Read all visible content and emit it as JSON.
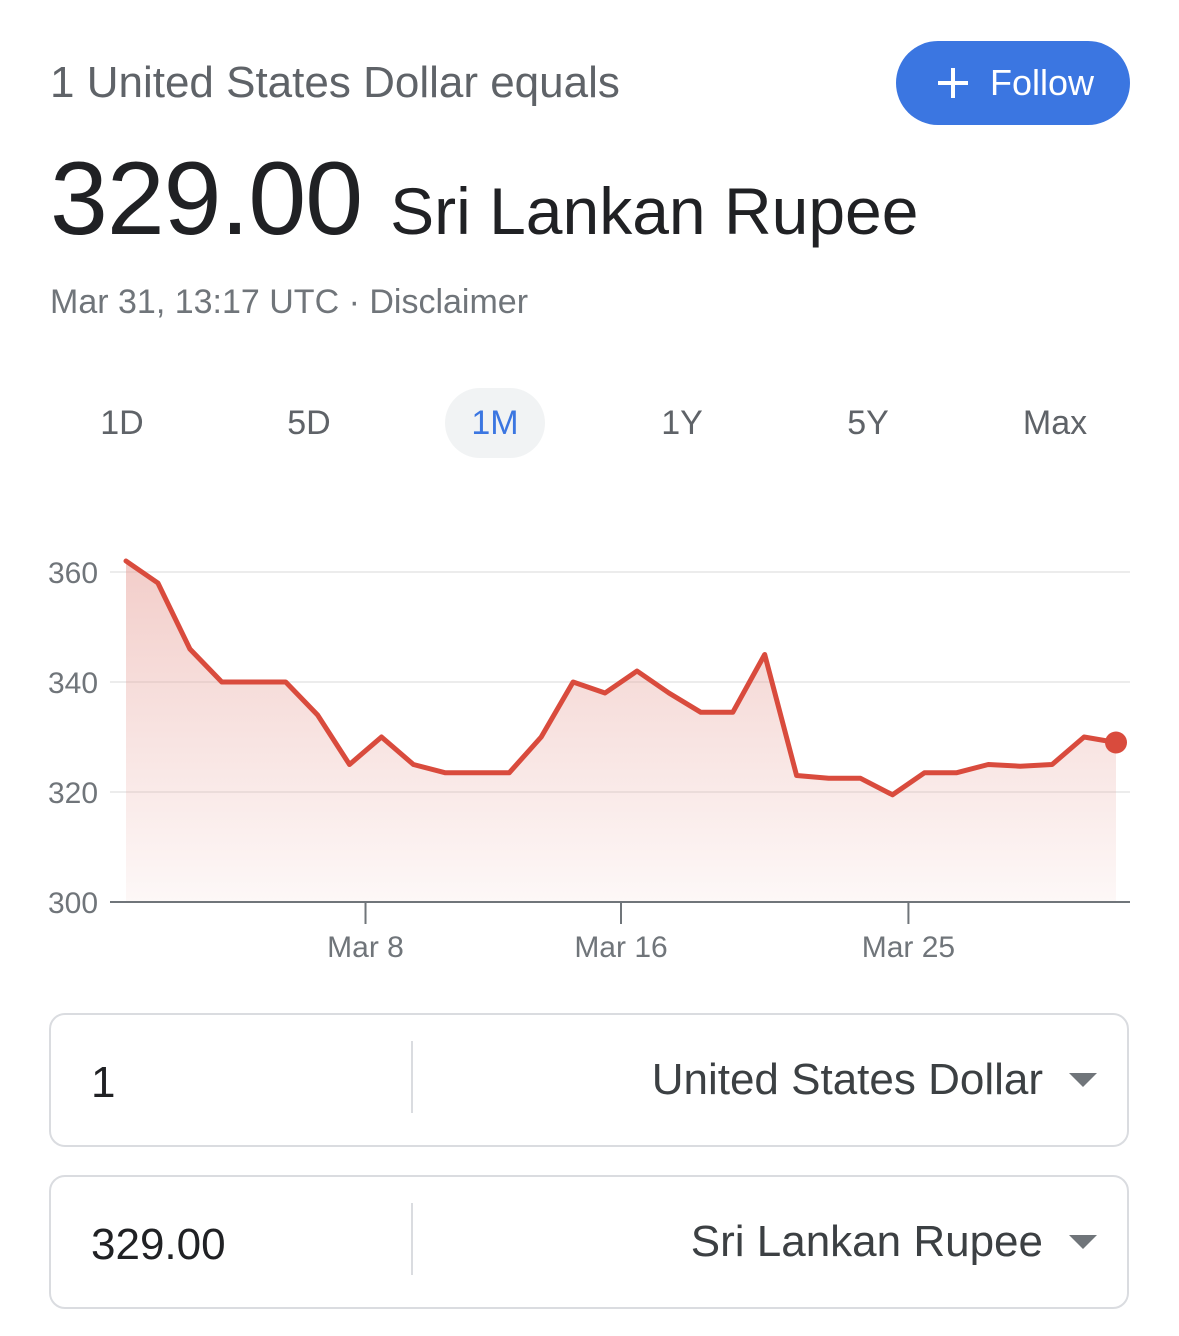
{
  "header": {
    "subtitle": "1 United States Dollar equals",
    "follow_label": "Follow"
  },
  "rate": {
    "value": "329.00",
    "currency": "Sri Lankan Rupee"
  },
  "meta": {
    "timestamp": "Mar 31, 13:17 UTC",
    "separator": " · ",
    "disclaimer": "Disclaimer"
  },
  "ranges": [
    {
      "label": "1D",
      "active": false
    },
    {
      "label": "5D",
      "active": false
    },
    {
      "label": "1M",
      "active": true
    },
    {
      "label": "1Y",
      "active": false
    },
    {
      "label": "5Y",
      "active": false
    },
    {
      "label": "Max",
      "active": false
    }
  ],
  "chart_data": {
    "type": "area",
    "title": "",
    "xlabel": "",
    "ylabel": "",
    "ylim": [
      300,
      360
    ],
    "yticks": [
      300,
      320,
      340,
      360
    ],
    "xticks": [
      {
        "label": "Mar 8",
        "x": 8
      },
      {
        "label": "Mar 16",
        "x": 16
      },
      {
        "label": "Mar 25",
        "x": 25
      }
    ],
    "xlim": [
      0.5,
      31.5
    ],
    "grid": true,
    "line_color": "#d94b3d",
    "fill_color": "#e8a59e",
    "series": [
      {
        "x": [
          0.5,
          1.5,
          2.5,
          3.5,
          4.5,
          5.5,
          6.5,
          7.5,
          8.5,
          9.5,
          10.5,
          11.5,
          12.5,
          13.5,
          14.5,
          15.5,
          16.5,
          17.5,
          18.5,
          19.5,
          20.5,
          21.5,
          22.5,
          23.5,
          24.5,
          25.5,
          26.5,
          27.5,
          28.5,
          29.5,
          30.5,
          31.5
        ],
        "values": [
          362,
          358,
          346,
          340,
          340,
          340,
          334,
          325,
          330,
          325,
          323.5,
          323.5,
          323.5,
          330,
          340,
          338,
          342,
          338,
          334.5,
          334.5,
          345,
          323,
          322.5,
          322.5,
          319.5,
          323.5,
          323.5,
          325,
          324.7,
          325,
          330,
          329
        ]
      }
    ]
  },
  "converter": {
    "from": {
      "amount": "1",
      "currency": "United States Dollar"
    },
    "to": {
      "amount": "329.00",
      "currency": "Sri Lankan Rupee"
    }
  }
}
